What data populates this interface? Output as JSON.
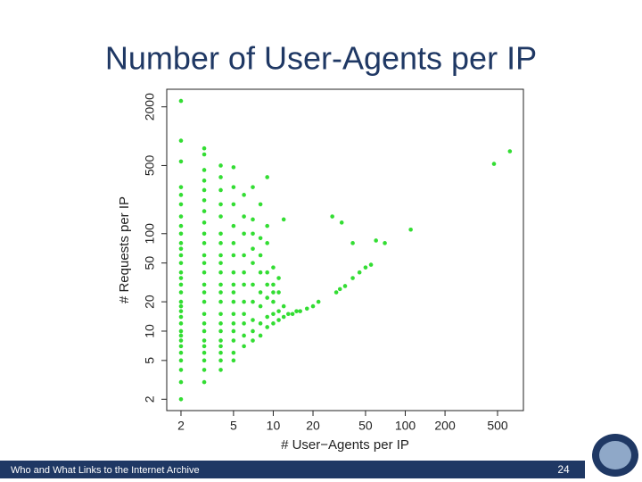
{
  "slide": {
    "title": "Number of User-Agents per IP",
    "footer": "Who and What Links to the Internet Archive",
    "page_number": "24"
  },
  "chart_data": {
    "type": "scatter",
    "xlabel": "# User−Agents per IP",
    "ylabel": "# Requests per IP",
    "color": "#33dd33",
    "xlog": true,
    "ylog": true,
    "xlim": [
      1.56,
      785
    ],
    "ylim": [
      1.53,
      3030
    ],
    "xticks": [
      2,
      5,
      10,
      20,
      50,
      100,
      200,
      500
    ],
    "yticks": [
      2,
      5,
      10,
      20,
      50,
      100,
      500,
      2000
    ],
    "x": [
      2,
      2,
      2,
      2,
      2,
      2,
      2,
      2,
      2,
      2,
      2,
      2,
      2,
      2,
      2,
      2,
      2,
      2,
      2,
      2,
      2,
      2,
      2,
      2,
      2,
      2,
      2,
      2,
      2,
      2,
      2,
      3,
      3,
      3,
      3,
      3,
      3,
      3,
      3,
      3,
      3,
      3,
      3,
      3,
      3,
      3,
      3,
      3,
      3,
      3,
      3,
      3,
      3,
      3,
      3,
      3,
      4,
      4,
      4,
      4,
      4,
      4,
      4,
      4,
      4,
      4,
      4,
      4,
      4,
      4,
      4,
      4,
      4,
      4,
      4,
      4,
      4,
      5,
      5,
      5,
      5,
      5,
      5,
      5,
      5,
      5,
      5,
      5,
      5,
      5,
      5,
      5,
      5,
      6,
      6,
      6,
      6,
      6,
      6,
      6,
      6,
      6,
      6,
      6,
      7,
      7,
      7,
      7,
      7,
      7,
      7,
      7,
      7,
      7,
      8,
      8,
      8,
      8,
      8,
      8,
      8,
      8,
      9,
      9,
      9,
      9,
      9,
      9,
      9,
      9,
      10,
      10,
      10,
      10,
      10,
      10,
      11,
      11,
      11,
      11,
      12,
      12,
      12,
      13,
      14,
      15,
      16,
      18,
      20,
      22,
      30,
      32,
      35,
      40,
      45,
      50,
      55,
      70,
      110,
      28,
      33,
      40,
      60,
      470,
      620
    ],
    "values": [
      2,
      3,
      4,
      5,
      6,
      7,
      8,
      9,
      10,
      12,
      14,
      16,
      18,
      20,
      25,
      30,
      35,
      40,
      50,
      60,
      70,
      80,
      100,
      120,
      150,
      200,
      250,
      300,
      550,
      900,
      2300,
      3,
      4,
      5,
      6,
      7,
      8,
      10,
      12,
      15,
      20,
      25,
      30,
      40,
      50,
      60,
      80,
      100,
      130,
      170,
      220,
      280,
      350,
      450,
      650,
      750,
      4,
      5,
      6,
      7,
      8,
      10,
      12,
      15,
      20,
      25,
      30,
      40,
      50,
      60,
      80,
      100,
      150,
      200,
      280,
      380,
      500,
      5,
      6,
      8,
      10,
      12,
      15,
      20,
      25,
      30,
      40,
      60,
      80,
      120,
      200,
      300,
      480,
      7,
      9,
      12,
      15,
      20,
      30,
      40,
      60,
      100,
      150,
      250,
      8,
      10,
      13,
      20,
      30,
      50,
      70,
      100,
      140,
      300,
      9,
      12,
      18,
      25,
      40,
      60,
      90,
      200,
      11,
      14,
      22,
      30,
      40,
      80,
      120,
      380,
      12,
      15,
      20,
      25,
      30,
      45,
      13,
      16,
      25,
      35,
      14,
      18,
      140,
      15,
      15,
      16,
      16,
      17,
      18,
      20,
      25,
      27,
      29,
      35,
      40,
      45,
      48,
      80,
      110,
      150,
      130,
      80,
      85,
      520,
      700
    ]
  }
}
